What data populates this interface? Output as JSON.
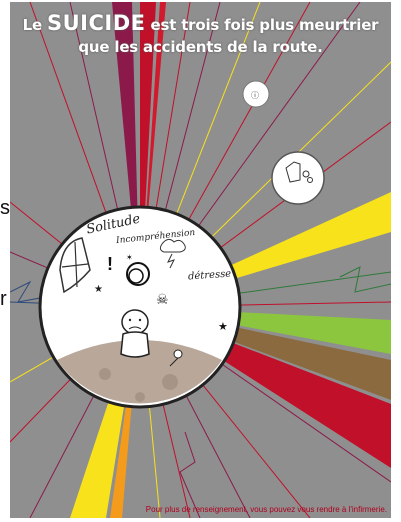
{
  "headline": {
    "part1": "Le",
    "emphasis": "SUICIDE",
    "part2": "est trois fois plus meurtrier",
    "line2": "que les accidents de la route."
  },
  "circle": {
    "word1": "Solitude",
    "word2": "Incompréhension",
    "word3": "détresse"
  },
  "footer": "Pour plus de renseignement, vous pouvez vous rendre à l'infirmerie.",
  "side": {
    "glyph_top": "s.",
    "glyph_bottom": "r"
  },
  "colors": {
    "background": "#8f8f8f",
    "accent_red": "#c0102a",
    "accent_yellow": "#f7e21b",
    "accent_green": "#8cc63f",
    "accent_orange": "#f49b1c",
    "accent_purple": "#8b1a4a",
    "footer_text": "#b0001e"
  }
}
